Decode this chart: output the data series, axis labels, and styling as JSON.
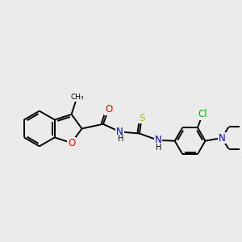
{
  "bg_color": "#ebebeb",
  "atom_colors": {
    "O": "#ff0000",
    "N": "#0000cd",
    "S": "#b8b800",
    "Cl": "#00b800",
    "C": "#000000",
    "H": "#404040"
  },
  "line_width": 1.4,
  "font_size": 8.5
}
